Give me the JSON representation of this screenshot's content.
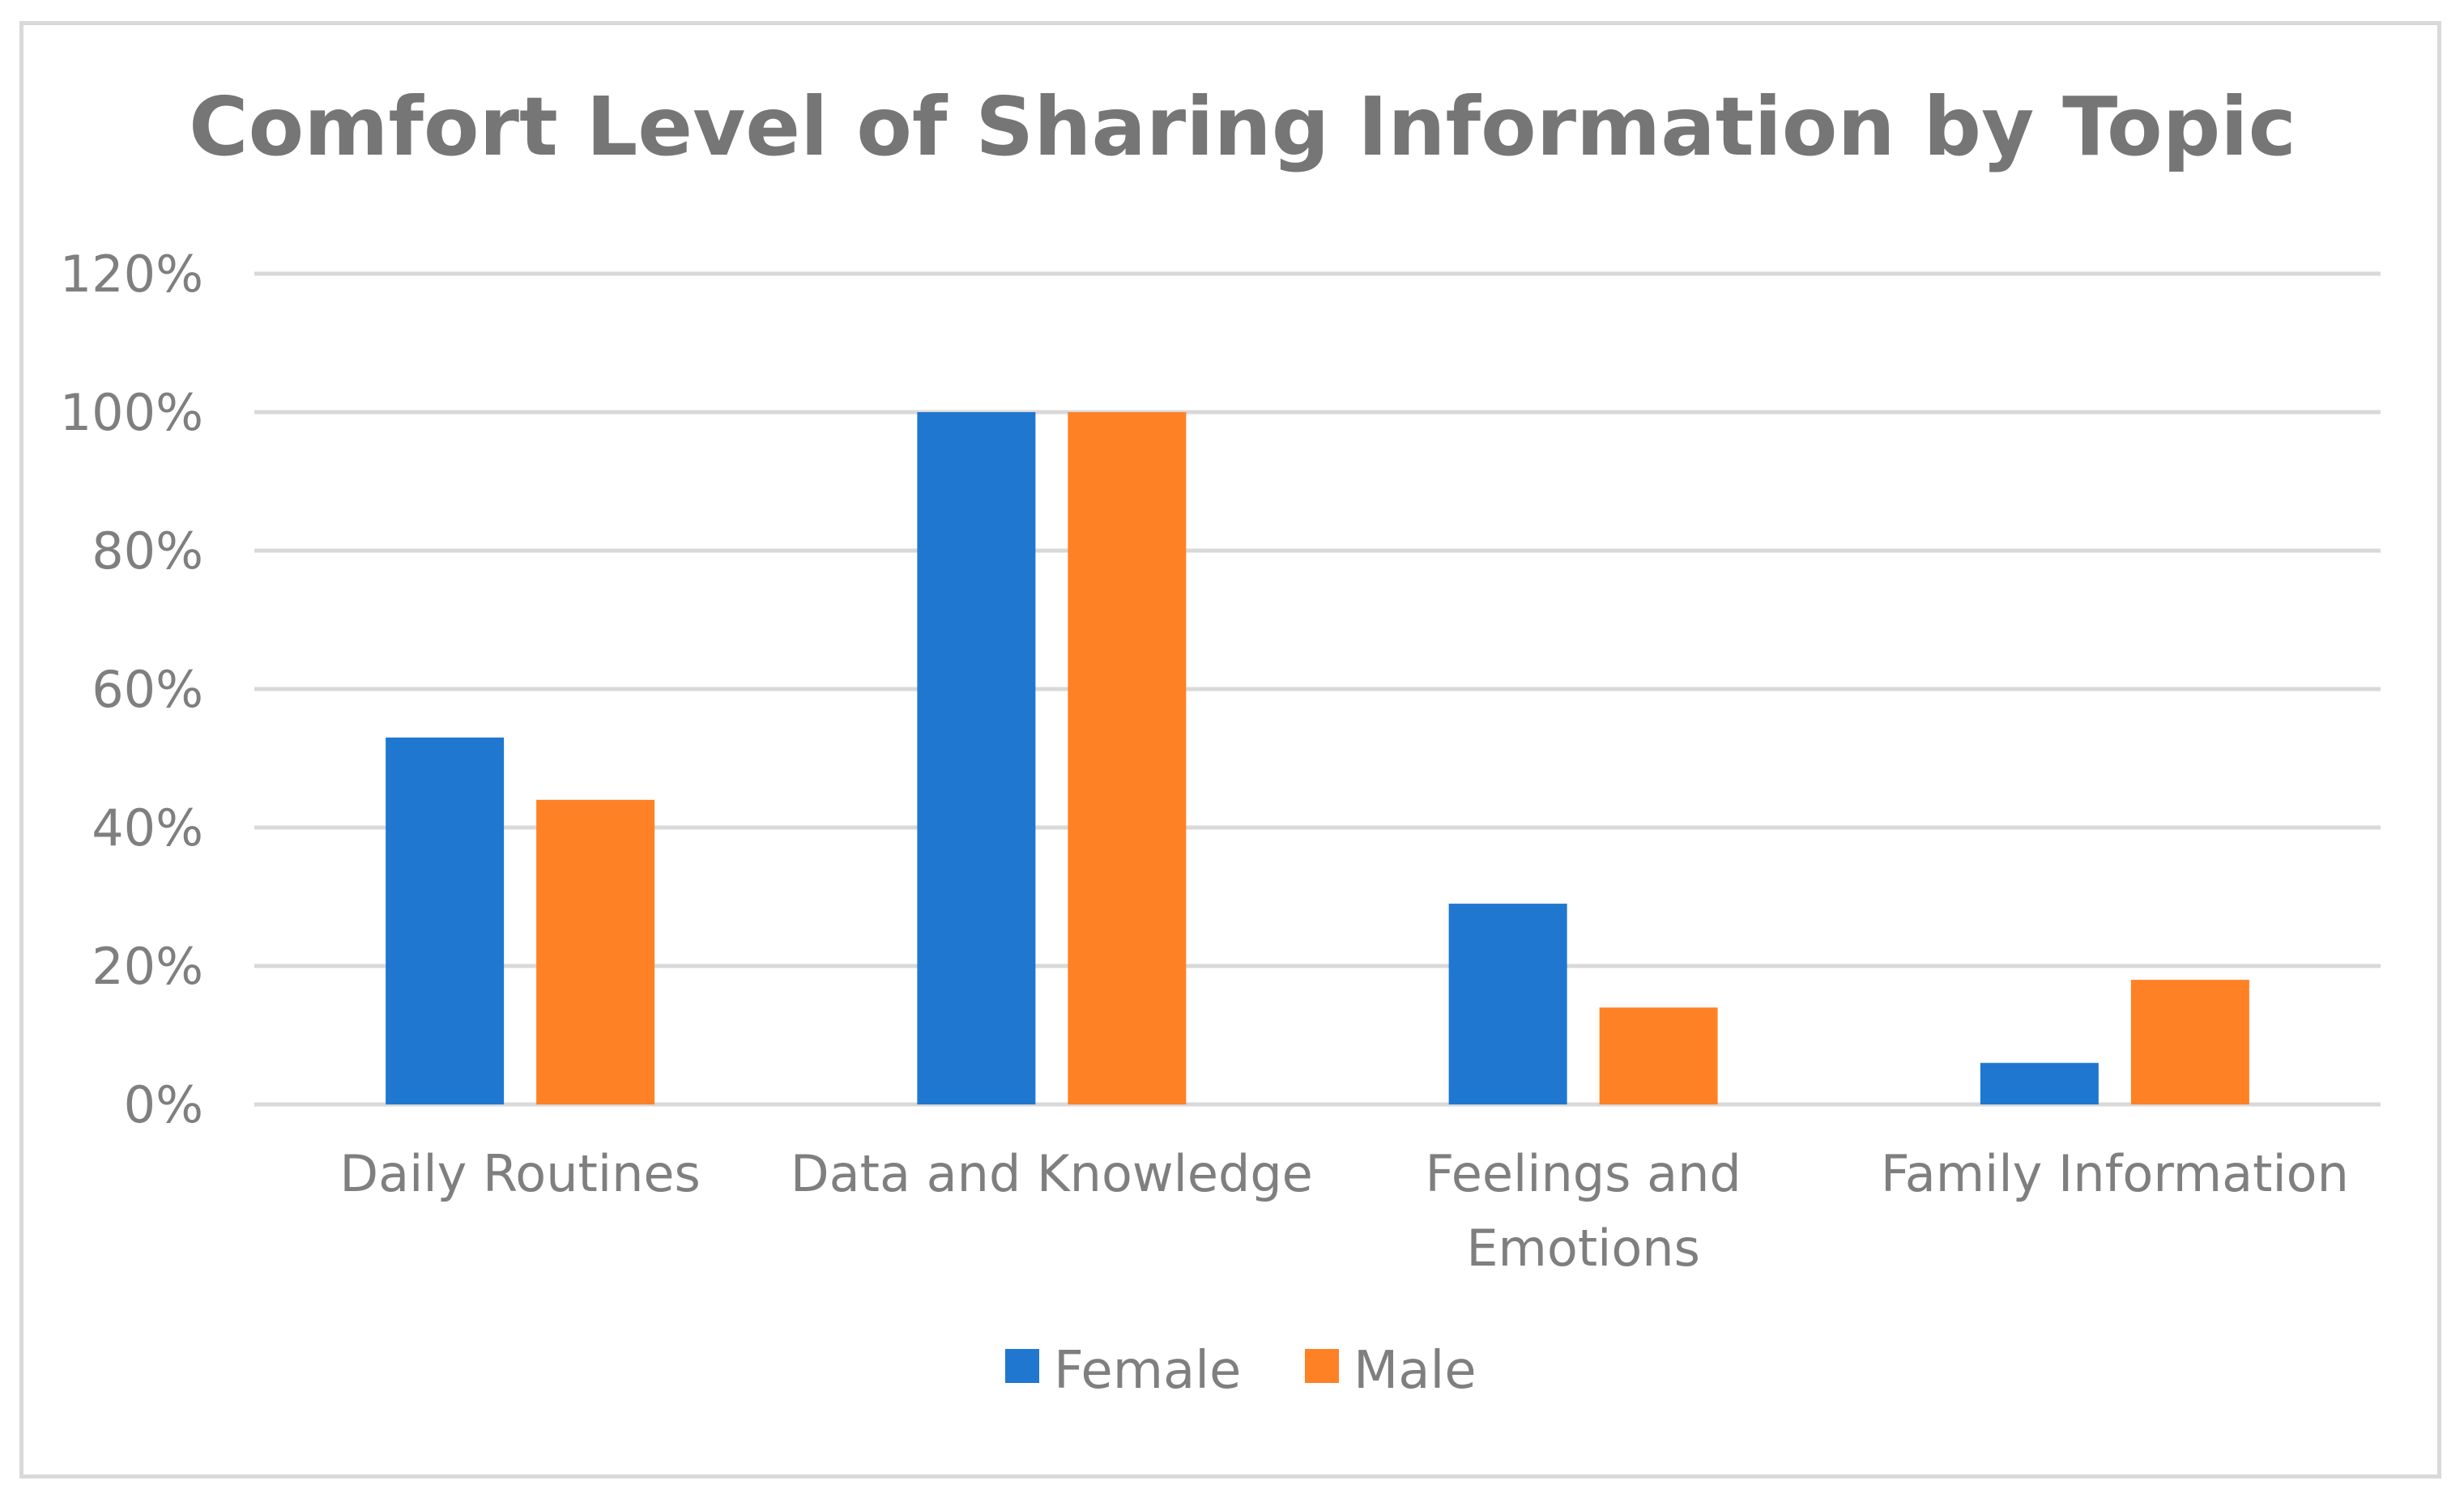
{
  "chart_data": {
    "type": "bar",
    "title": "Comfort Level of Sharing Information by Topic",
    "xlabel": "",
    "ylabel": "",
    "categories": [
      [
        "Daily Routines"
      ],
      [
        "Data and Knowledge"
      ],
      [
        "Feelings and",
        "Emotions"
      ],
      [
        "Family Information"
      ]
    ],
    "series": [
      {
        "name": "Female",
        "color": "#1f77d0",
        "values": [
          53,
          100,
          29,
          6
        ]
      },
      {
        "name": "Male",
        "color": "#ff8126",
        "values": [
          44,
          100,
          14,
          18
        ]
      }
    ],
    "ylim": [
      0,
      120
    ],
    "yticks": [
      0,
      20,
      40,
      60,
      80,
      100,
      120
    ],
    "ytick_labels": [
      "0%",
      "20%",
      "40%",
      "60%",
      "80%",
      "100%",
      "120%"
    ],
    "grid": true,
    "legend": {
      "position": "bottom-center",
      "items": [
        "Female",
        "Male"
      ]
    },
    "colors": {
      "grid": "#d9d9d9",
      "text": "#7f7f7f",
      "title": "#767676"
    }
  }
}
